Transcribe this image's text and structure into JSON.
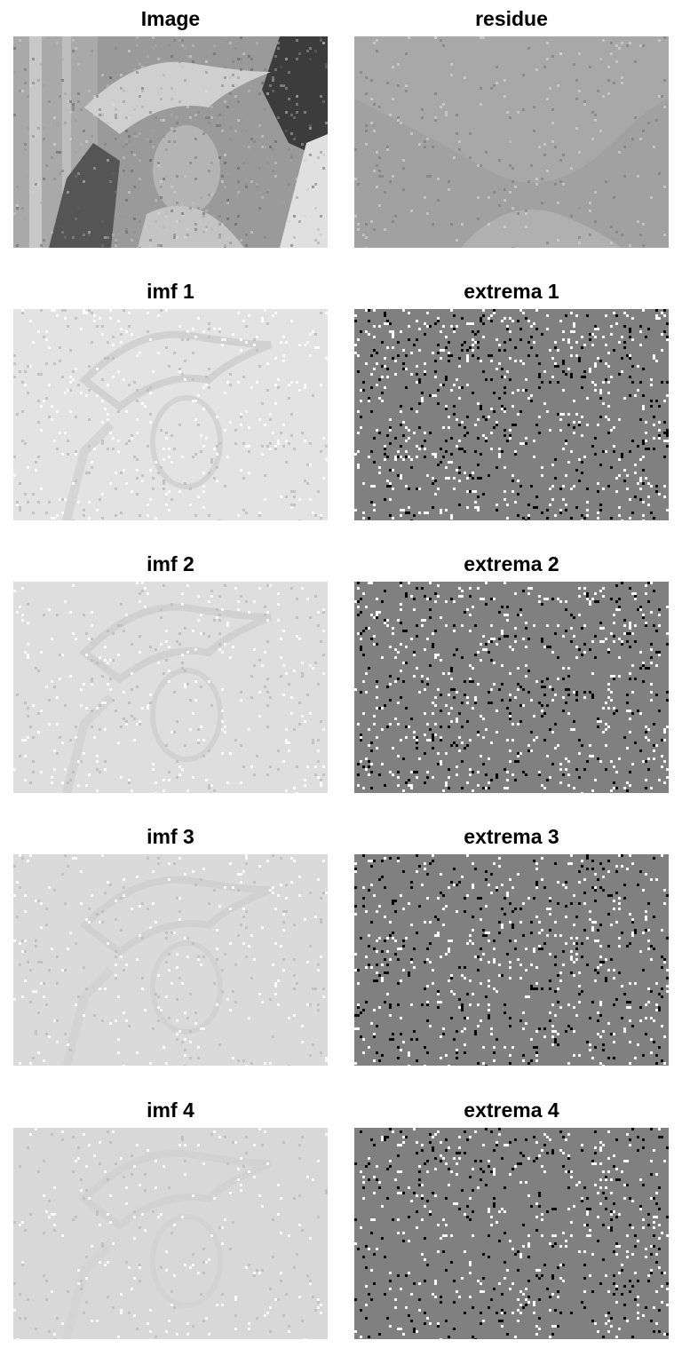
{
  "panels": [
    {
      "id": "image",
      "title": "Image",
      "kind": "photo"
    },
    {
      "id": "residue",
      "title": "residue",
      "kind": "residue"
    },
    {
      "id": "imf1",
      "title": "imf 1",
      "kind": "imf",
      "level": 1
    },
    {
      "id": "extrema1",
      "title": "extrema 1",
      "kind": "extrema",
      "level": 1
    },
    {
      "id": "imf2",
      "title": "imf 2",
      "kind": "imf",
      "level": 2
    },
    {
      "id": "extrema2",
      "title": "extrema 2",
      "kind": "extrema",
      "level": 2
    },
    {
      "id": "imf3",
      "title": "imf 3",
      "kind": "imf",
      "level": 3
    },
    {
      "id": "extrema3",
      "title": "extrema 3",
      "kind": "extrema",
      "level": 3
    },
    {
      "id": "imf4",
      "title": "imf 4",
      "kind": "imf",
      "level": 4
    },
    {
      "id": "extrema4",
      "title": "extrema 4",
      "kind": "extrema",
      "level": 4
    }
  ],
  "colors": {
    "extrema_background": "#808080",
    "extrema_max": "#ffffff",
    "extrema_min": "#000000"
  }
}
